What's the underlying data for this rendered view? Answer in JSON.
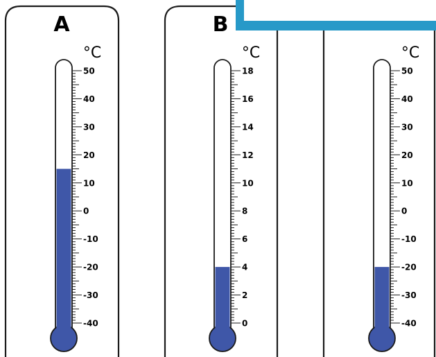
{
  "colors": {
    "liquid": "#3f57a8",
    "banner": "#2799c8",
    "outline": "#1a1a1a"
  },
  "thermometers": [
    {
      "label": "A",
      "unit": "°C",
      "scale_labels": [
        "50",
        "40",
        "30",
        "20",
        "10",
        "0",
        "-10",
        "-20",
        "-30",
        "-40"
      ],
      "scale_min": -40,
      "scale_max": 50,
      "reading": 15
    },
    {
      "label": "B",
      "unit": "°C",
      "scale_labels": [
        "18",
        "16",
        "14",
        "12",
        "10",
        "8",
        "6",
        "4",
        "2",
        "0"
      ],
      "scale_min": 0,
      "scale_max": 18,
      "reading": 4
    },
    {
      "label": "",
      "unit": "°C",
      "scale_labels": [
        "50",
        "40",
        "30",
        "20",
        "10",
        "0",
        "-10",
        "-20",
        "-30",
        "-40"
      ],
      "scale_min": -40,
      "scale_max": 50,
      "reading": -20
    }
  ]
}
